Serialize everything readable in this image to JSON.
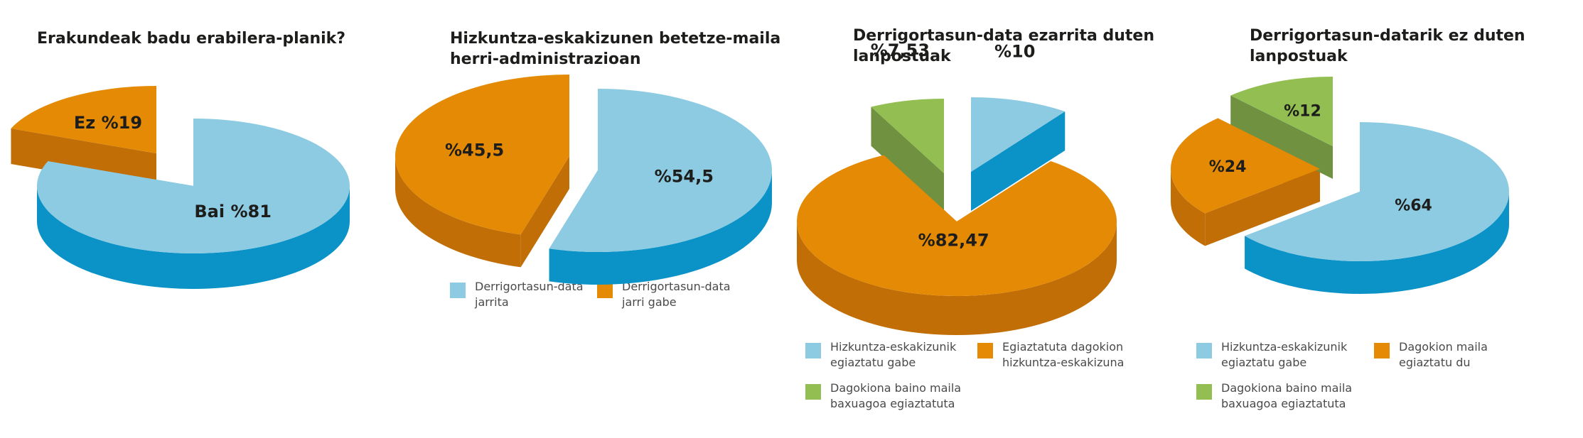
{
  "colors": {
    "blue_top": "#8dcbe2",
    "blue_side": "#0b93c8",
    "orange_top": "#e58a04",
    "orange_side": "#c06e05",
    "green_top": "#92be52",
    "green_side": "#6f9140",
    "label": "#1d1d1b"
  },
  "chart_data": [
    {
      "type": "pie",
      "title_lines": [
        "Erakundeak badu erabilera-planik?"
      ],
      "slices": [
        {
          "label": "Bai %81",
          "value": 81,
          "color": "blue"
        },
        {
          "label": "Ez %19",
          "value": 19,
          "color": "orange"
        }
      ],
      "legend": []
    },
    {
      "type": "pie",
      "title_lines": [
        "Hizkuntza-eskakizunen betetze-maila",
        "herri-administrazioan"
      ],
      "slices": [
        {
          "label": "%54,5",
          "value": 54.5,
          "color": "blue"
        },
        {
          "label": "%45,5",
          "value": 45.5,
          "color": "orange"
        }
      ],
      "legend": [
        {
          "lines": [
            "Derrigortasun-data",
            "jarrita"
          ],
          "color": "blue"
        },
        {
          "lines": [
            "Derrigortasun-data",
            "jarri gabe"
          ],
          "color": "orange"
        }
      ]
    },
    {
      "type": "pie",
      "title_lines": [
        "Derrigortasun-data ezarrita duten",
        "lanpostuak"
      ],
      "slices": [
        {
          "label": "%10",
          "value": 10,
          "color": "blue"
        },
        {
          "label": "%82,47",
          "value": 82.47,
          "color": "orange"
        },
        {
          "label": "%7,53",
          "value": 7.53,
          "color": "green"
        }
      ],
      "legend": [
        {
          "lines": [
            "Hizkuntza-eskakizunik",
            "egiaztatu gabe"
          ],
          "color": "blue"
        },
        {
          "lines": [
            "Egiaztatuta dagokion",
            "hizkuntza-eskakizuna"
          ],
          "color": "orange"
        },
        {
          "lines": [
            "Dagokiona baino maila",
            "baxuagoa egiaztatuta"
          ],
          "color": "green"
        }
      ]
    },
    {
      "type": "pie",
      "title_lines": [
        "Derrigortasun-datarik ez duten",
        "lanpostuak"
      ],
      "slices": [
        {
          "label": "%64",
          "value": 64,
          "color": "blue"
        },
        {
          "label": "%24",
          "value": 24,
          "color": "orange"
        },
        {
          "label": "%12",
          "value": 12,
          "color": "green"
        }
      ],
      "legend": [
        {
          "lines": [
            "Hizkuntza-eskakizunik",
            "egiaztatu gabe"
          ],
          "color": "blue"
        },
        {
          "lines": [
            "Dagokion maila",
            "egiaztatu du"
          ],
          "color": "orange"
        },
        {
          "lines": [
            "Dagokiona baino maila",
            "baxuagoa egiaztatuta"
          ],
          "color": "green"
        }
      ]
    }
  ]
}
